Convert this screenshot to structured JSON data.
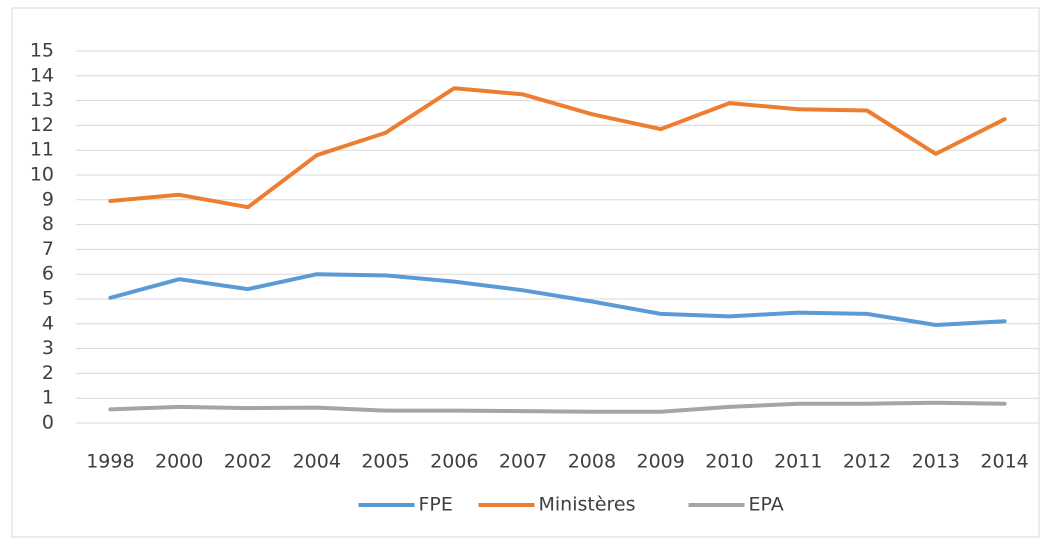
{
  "chart_data": {
    "type": "line",
    "categories": [
      "1998",
      "2000",
      "2002",
      "2004",
      "2005",
      "2006",
      "2007",
      "2008",
      "2009",
      "2010",
      "2011",
      "2012",
      "2013",
      "2014"
    ],
    "series": [
      {
        "name": "FPE",
        "color": "#5b9bd5",
        "values": [
          5.05,
          5.8,
          5.4,
          6.0,
          5.95,
          5.7,
          5.35,
          4.9,
          4.4,
          4.3,
          4.45,
          4.4,
          3.95,
          4.1
        ]
      },
      {
        "name": "Ministères",
        "color": "#ed7d31",
        "values": [
          8.95,
          9.2,
          8.7,
          10.8,
          11.7,
          13.5,
          13.25,
          12.45,
          11.85,
          12.9,
          12.65,
          12.6,
          10.85,
          12.25
        ]
      },
      {
        "name": "EPA",
        "color": "#a5a5a5",
        "values": [
          0.55,
          0.65,
          0.6,
          0.62,
          0.5,
          0.5,
          0.48,
          0.45,
          0.45,
          0.65,
          0.78,
          0.78,
          0.82,
          0.78
        ]
      }
    ],
    "ylim": [
      0,
      15
    ],
    "yticks": [
      0,
      1,
      2,
      3,
      4,
      5,
      6,
      7,
      8,
      9,
      10,
      11,
      12,
      13,
      14,
      15
    ],
    "grid": true,
    "legend": "bottom"
  }
}
